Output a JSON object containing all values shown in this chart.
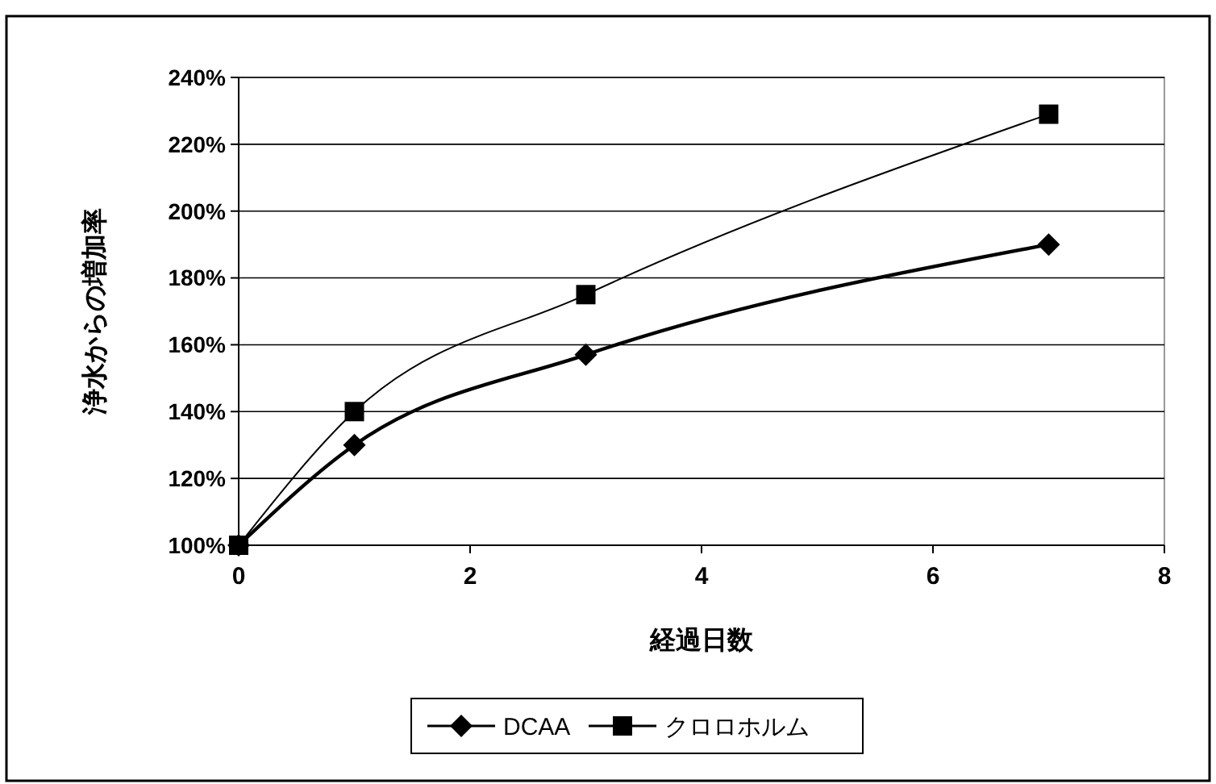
{
  "chart_data": {
    "type": "line",
    "xlabel": "経過日数",
    "ylabel": "浄水からの増加率",
    "series": [
      {
        "name": "DCAA",
        "color": "#000000",
        "marker": "diamond",
        "x": [
          0,
          1,
          3,
          7
        ],
        "values": [
          100,
          130,
          157,
          190
        ]
      },
      {
        "name": "クロロホルム",
        "color": "#000000",
        "marker": "square",
        "x": [
          0,
          1,
          3,
          7
        ],
        "values": [
          100,
          140,
          175,
          229
        ]
      }
    ],
    "xlim": [
      0,
      8
    ],
    "xticks": [
      0,
      2,
      4,
      6,
      8
    ],
    "ylim": [
      100,
      240
    ],
    "yticks": [
      {
        "value": 100,
        "label": "100%"
      },
      {
        "value": 120,
        "label": "120%"
      },
      {
        "value": 140,
        "label": "140%"
      },
      {
        "value": 160,
        "label": "160%"
      },
      {
        "value": 180,
        "label": "180%"
      },
      {
        "value": 200,
        "label": "200%"
      },
      {
        "value": 220,
        "label": "220%"
      },
      {
        "value": 240,
        "label": "240%"
      }
    ],
    "grid": "y",
    "legend": "bottom"
  }
}
